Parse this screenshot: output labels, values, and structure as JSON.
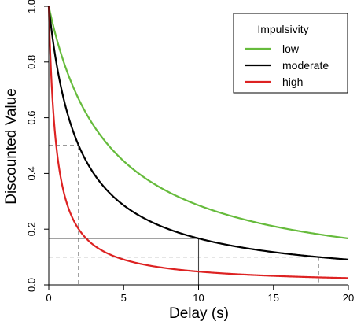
{
  "chart_data": {
    "type": "line",
    "xlabel": "Delay (s)",
    "ylabel": "Discounted Value",
    "xlim": [
      0,
      20
    ],
    "ylim": [
      0,
      1
    ],
    "xticks": [
      0,
      5,
      10,
      15,
      20
    ],
    "yticks": [
      0.0,
      0.2,
      0.4,
      0.6,
      0.8,
      1.0
    ],
    "xtick_labels": [
      "0",
      "5",
      "10",
      "15",
      "20"
    ],
    "ytick_labels": [
      "0.0",
      "0.2",
      "0.4",
      "0.6",
      "0.8",
      "1.0"
    ],
    "grid": false,
    "legend": {
      "title": "Impulsivity",
      "placement": "top-right"
    },
    "model": "hyperbolic V = 1 / (1 + k * delay)",
    "series": [
      {
        "name": "low",
        "k": 0.25,
        "color": "#66bb3c"
      },
      {
        "name": "moderate",
        "k": 0.5,
        "color": "#000000"
      },
      {
        "name": "high",
        "k": 2.0,
        "color": "#dd2222"
      }
    ],
    "reference_lines": [
      {
        "style": "dashed",
        "x": 2,
        "y": 0.5
      },
      {
        "style": "solid",
        "x": 10,
        "y": 0.1667
      },
      {
        "style": "dashed",
        "x": 18,
        "y": 0.1
      }
    ]
  }
}
